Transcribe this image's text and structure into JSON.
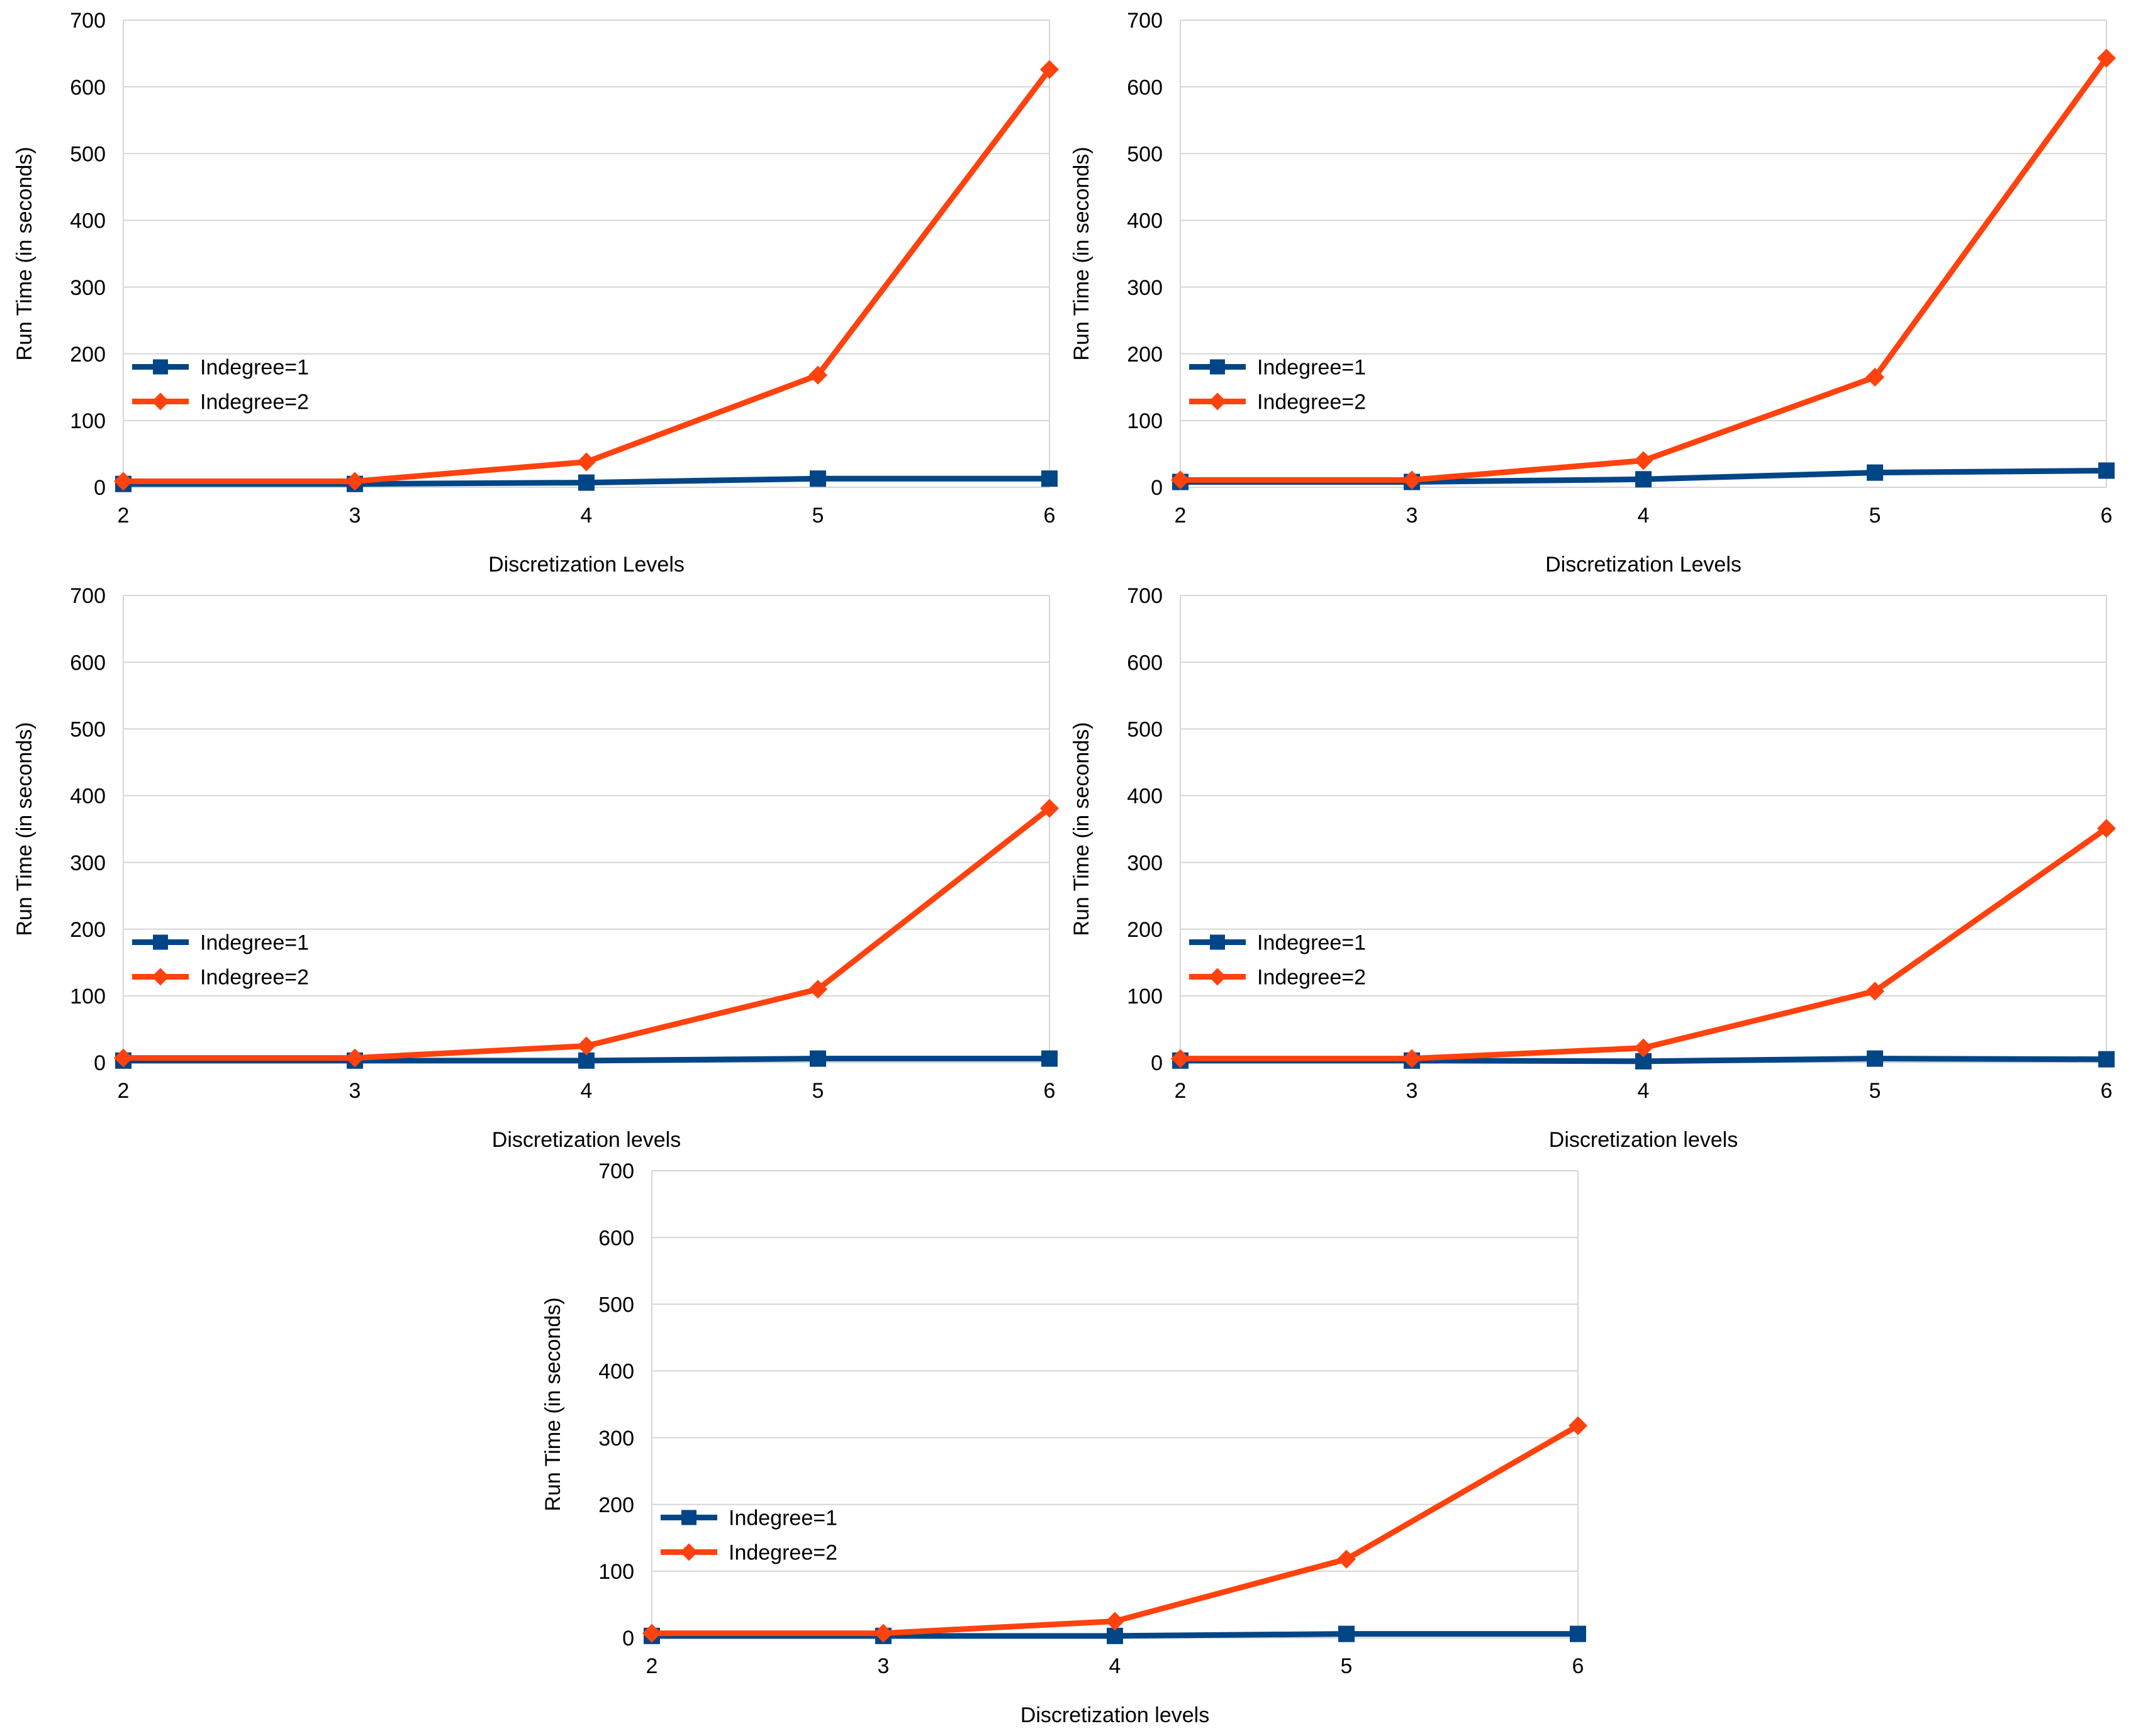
{
  "chart_data": [
    {
      "type": "line",
      "categories": [
        "2",
        "3",
        "4",
        "5",
        "6"
      ],
      "series": [
        {
          "name": "Indegree=1",
          "values": [
            5,
            5,
            7,
            13,
            13
          ],
          "color": "#004586",
          "marker": "square"
        },
        {
          "name": "Indegree=2",
          "values": [
            9,
            9,
            38,
            168,
            626
          ],
          "color": "#ff420e",
          "marker": "diamond"
        }
      ],
      "title": "",
      "xlabel": "Discretization Levels",
      "ylabel": "Run Time (in seconds)",
      "ylim": [
        0,
        700
      ],
      "yticks": [
        "0",
        "100",
        "200",
        "300",
        "400",
        "500",
        "600",
        "700"
      ],
      "grid": true,
      "legend": "middle-left"
    },
    {
      "type": "line",
      "categories": [
        "2",
        "3",
        "4",
        "5",
        "6"
      ],
      "series": [
        {
          "name": "Indegree=1",
          "values": [
            8,
            8,
            12,
            22,
            25
          ],
          "color": "#004586",
          "marker": "square"
        },
        {
          "name": "Indegree=2",
          "values": [
            11,
            11,
            40,
            165,
            643
          ],
          "color": "#ff420e",
          "marker": "diamond"
        }
      ],
      "title": "",
      "xlabel": "Discretization Levels",
      "ylabel": "Run Time (in seconds)",
      "ylim": [
        0,
        700
      ],
      "yticks": [
        "0",
        "100",
        "200",
        "300",
        "400",
        "500",
        "600",
        "700"
      ],
      "grid": true,
      "legend": "middle-left"
    },
    {
      "type": "line",
      "categories": [
        "2",
        "3",
        "4",
        "5",
        "6"
      ],
      "series": [
        {
          "name": "Indegree=1",
          "values": [
            3,
            3,
            3,
            6,
            6
          ],
          "color": "#004586",
          "marker": "square"
        },
        {
          "name": "Indegree=2",
          "values": [
            7,
            7,
            25,
            110,
            381
          ],
          "color": "#ff420e",
          "marker": "diamond"
        }
      ],
      "title": "",
      "xlabel": "Discretization levels",
      "ylabel": "Run Time (in seconds)",
      "ylim": [
        0,
        700
      ],
      "yticks": [
        "0",
        "100",
        "200",
        "300",
        "400",
        "500",
        "600",
        "700"
      ],
      "grid": true,
      "legend": "middle-left"
    },
    {
      "type": "line",
      "categories": [
        "2",
        "3",
        "4",
        "5",
        "6"
      ],
      "series": [
        {
          "name": "Indegree=1",
          "values": [
            3,
            3,
            2,
            6,
            5
          ],
          "color": "#004586",
          "marker": "square"
        },
        {
          "name": "Indegree=2",
          "values": [
            6,
            6,
            22,
            107,
            351
          ],
          "color": "#ff420e",
          "marker": "diamond"
        }
      ],
      "title": "",
      "xlabel": "Discretization levels",
      "ylabel": "Run Time (in seconds)",
      "ylim": [
        0,
        700
      ],
      "yticks": [
        "0",
        "100",
        "200",
        "300",
        "400",
        "500",
        "600",
        "700"
      ],
      "grid": true,
      "legend": "middle-left"
    },
    {
      "type": "line",
      "categories": [
        "2",
        "3",
        "4",
        "5",
        "6"
      ],
      "series": [
        {
          "name": "Indegree=1",
          "values": [
            3,
            3,
            3,
            6,
            6
          ],
          "color": "#004586",
          "marker": "square"
        },
        {
          "name": "Indegree=2",
          "values": [
            7,
            7,
            25,
            118,
            318
          ],
          "color": "#ff420e",
          "marker": "diamond"
        }
      ],
      "title": "",
      "xlabel": "Discretization levels",
      "ylabel": "Run Time (in seconds)",
      "ylim": [
        0,
        700
      ],
      "yticks": [
        "0",
        "100",
        "200",
        "300",
        "400",
        "500",
        "600",
        "700"
      ],
      "grid": true,
      "legend": "middle-left"
    }
  ]
}
